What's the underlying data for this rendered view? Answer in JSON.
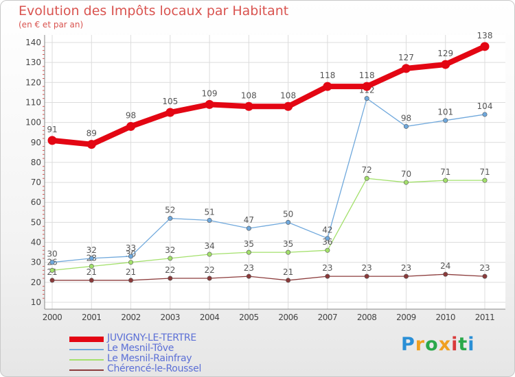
{
  "header": {
    "title": "Evolution des Impôts locaux par Habitant",
    "subtitle": "(en € et par an)"
  },
  "logo": {
    "text": "Proxiti",
    "colors": [
      "#2a8fd6",
      "#f0a020",
      "#2aa84a",
      "#f0a020",
      "#d93b3b",
      "#2aa84a",
      "#2a8fd6"
    ]
  },
  "chart_data": {
    "type": "line",
    "x": [
      "2000",
      "2001",
      "2002",
      "2003",
      "2004",
      "2005",
      "2006",
      "2007",
      "2008",
      "2009",
      "2010",
      "2011"
    ],
    "ylim": [
      10,
      140
    ],
    "yticks": [
      "10",
      "20",
      "30",
      "40",
      "50",
      "60",
      "70",
      "80",
      "90",
      "100",
      "110",
      "120",
      "130",
      "140"
    ],
    "grid": true,
    "legend_position": "bottom-left",
    "series": [
      {
        "name": "JUVIGNY-LE-TERTRE",
        "color": "#e30613",
        "values": [
          91,
          89,
          98,
          105,
          109,
          108,
          108,
          118,
          118,
          127,
          129,
          138
        ],
        "labels": [
          "91",
          "89",
          "98",
          "105",
          "109",
          "108",
          "108",
          "118",
          "118",
          "127",
          "129",
          "138"
        ]
      },
      {
        "name": "Le Mesnil-Tôve",
        "color": "#6fa8dc",
        "values": [
          30,
          32,
          33,
          52,
          51,
          47,
          50,
          42,
          112,
          98,
          101,
          104
        ],
        "labels": [
          "30",
          "32",
          "33",
          "52",
          "51",
          "47",
          "50",
          "42",
          "112",
          "98",
          "101",
          "104"
        ]
      },
      {
        "name": "Le Mesnil-Rainfray",
        "color": "#a3e06b",
        "values": [
          26,
          28,
          30,
          32,
          34,
          35,
          35,
          36,
          72,
          70,
          71,
          71
        ],
        "labels": [
          "26",
          "28",
          "30",
          "32",
          "34",
          "35",
          "35",
          "36",
          "72",
          "70",
          "71",
          "71"
        ]
      },
      {
        "name": "Chérencé-le-Roussel",
        "color": "#8b3a3a",
        "values": [
          21,
          21,
          21,
          22,
          22,
          23,
          21,
          23,
          23,
          23,
          24,
          23
        ],
        "labels": [
          "21",
          "21",
          "21",
          "22",
          "22",
          "23",
          "21",
          "23",
          "23",
          "23",
          "24",
          "23"
        ]
      }
    ]
  }
}
